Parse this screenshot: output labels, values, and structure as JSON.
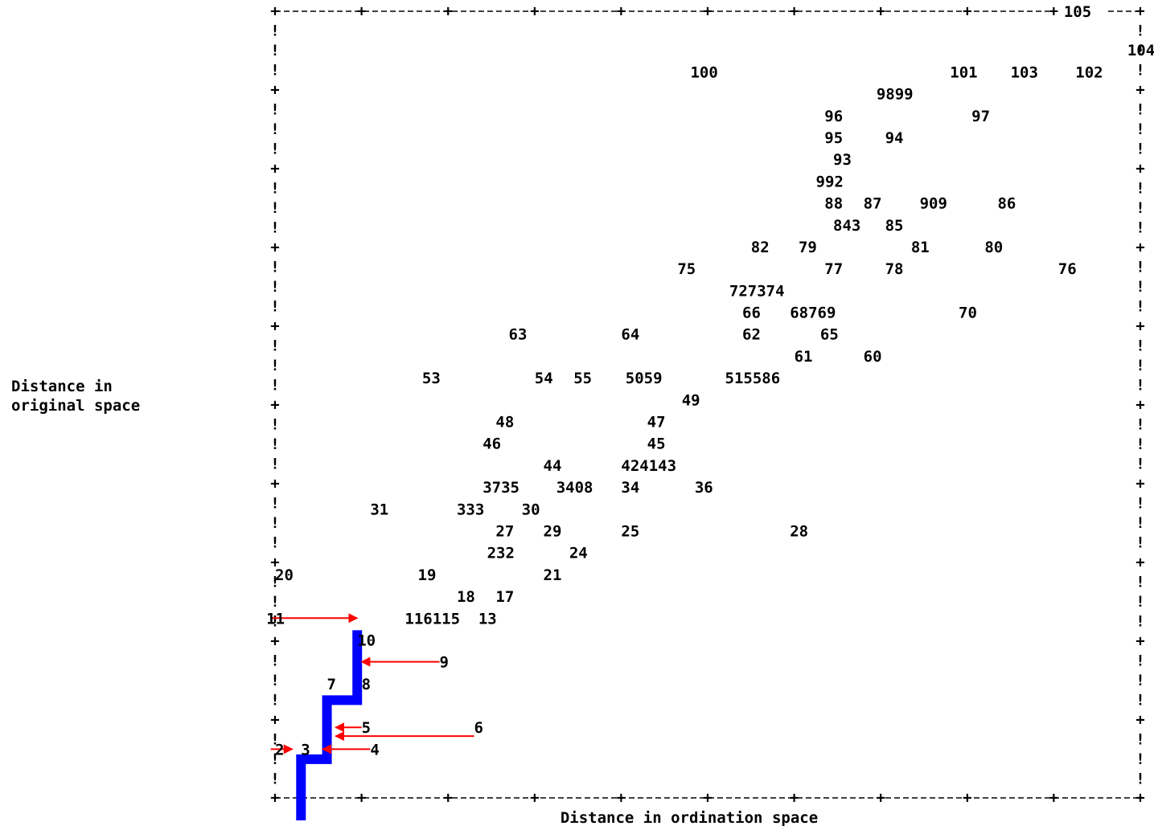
{
  "chart_data": {
    "type": "scatter",
    "title": "",
    "xlabel": "Distance in ordination space",
    "ylabel_lines": [
      "Distance in",
      "original space"
    ],
    "xlim": [
      0,
      10
    ],
    "ylim": [
      0,
      36
    ],
    "grid": false,
    "frame_labels": [
      "105"
    ],
    "points": [
      {
        "label": "104",
        "x": 9.85,
        "y": 35
      },
      {
        "label": "100",
        "x": 4.8,
        "y": 34
      },
      {
        "label": "101",
        "x": 7.8,
        "y": 34
      },
      {
        "label": "103",
        "x": 8.5,
        "y": 34
      },
      {
        "label": "102",
        "x": 9.25,
        "y": 34
      },
      {
        "label": "9899",
        "x": 6.95,
        "y": 33
      },
      {
        "label": "96",
        "x": 6.35,
        "y": 32
      },
      {
        "label": "97",
        "x": 8.05,
        "y": 32
      },
      {
        "label": "95",
        "x": 6.35,
        "y": 31
      },
      {
        "label": "94",
        "x": 7.05,
        "y": 31
      },
      {
        "label": "93",
        "x": 6.45,
        "y": 30
      },
      {
        "label": "992",
        "x": 6.25,
        "y": 29
      },
      {
        "label": "88",
        "x": 6.35,
        "y": 28
      },
      {
        "label": "87",
        "x": 6.8,
        "y": 28
      },
      {
        "label": "909",
        "x": 7.45,
        "y": 28
      },
      {
        "label": "86",
        "x": 8.35,
        "y": 28
      },
      {
        "label": "843",
        "x": 6.45,
        "y": 27
      },
      {
        "label": "85",
        "x": 7.05,
        "y": 27
      },
      {
        "label": "82",
        "x": 5.5,
        "y": 26
      },
      {
        "label": "79",
        "x": 6.05,
        "y": 26
      },
      {
        "label": "81",
        "x": 7.35,
        "y": 26
      },
      {
        "label": "80",
        "x": 8.2,
        "y": 26
      },
      {
        "label": "75",
        "x": 4.65,
        "y": 25
      },
      {
        "label": "77",
        "x": 6.35,
        "y": 25
      },
      {
        "label": "78",
        "x": 7.05,
        "y": 25
      },
      {
        "label": "76",
        "x": 9.05,
        "y": 25
      },
      {
        "label": "727374",
        "x": 5.25,
        "y": 24
      },
      {
        "label": "66",
        "x": 5.4,
        "y": 23
      },
      {
        "label": "68769",
        "x": 5.95,
        "y": 23
      },
      {
        "label": "70",
        "x": 7.9,
        "y": 23
      },
      {
        "label": "63",
        "x": 2.7,
        "y": 22
      },
      {
        "label": "64",
        "x": 4.0,
        "y": 22
      },
      {
        "label": "62",
        "x": 5.4,
        "y": 22
      },
      {
        "label": "65",
        "x": 6.3,
        "y": 22
      },
      {
        "label": "61",
        "x": 6.0,
        "y": 21
      },
      {
        "label": "60",
        "x": 6.8,
        "y": 21
      },
      {
        "label": "53",
        "x": 1.7,
        "y": 20
      },
      {
        "label": "54",
        "x": 3.0,
        "y": 20
      },
      {
        "label": "55",
        "x": 3.45,
        "y": 20
      },
      {
        "label": "5059",
        "x": 4.05,
        "y": 20
      },
      {
        "label": "515586",
        "x": 5.2,
        "y": 20
      },
      {
        "label": "49",
        "x": 4.7,
        "y": 19
      },
      {
        "label": "48",
        "x": 2.55,
        "y": 18
      },
      {
        "label": "47",
        "x": 4.3,
        "y": 18
      },
      {
        "label": "46",
        "x": 2.4,
        "y": 17
      },
      {
        "label": "45",
        "x": 4.3,
        "y": 17
      },
      {
        "label": "44",
        "x": 3.1,
        "y": 16
      },
      {
        "label": "424143",
        "x": 4.0,
        "y": 16
      },
      {
        "label": "3735",
        "x": 2.4,
        "y": 15
      },
      {
        "label": "3408",
        "x": 3.25,
        "y": 15
      },
      {
        "label": "34",
        "x": 4.0,
        "y": 15
      },
      {
        "label": "36",
        "x": 4.85,
        "y": 15
      },
      {
        "label": "31",
        "x": 1.1,
        "y": 14
      },
      {
        "label": "333",
        "x": 2.1,
        "y": 14
      },
      {
        "label": "30",
        "x": 2.85,
        "y": 14
      },
      {
        "label": "27",
        "x": 2.55,
        "y": 13
      },
      {
        "label": "29",
        "x": 3.1,
        "y": 13
      },
      {
        "label": "25",
        "x": 4.0,
        "y": 13
      },
      {
        "label": "28",
        "x": 5.95,
        "y": 13
      },
      {
        "label": "232",
        "x": 2.45,
        "y": 12
      },
      {
        "label": "24",
        "x": 3.4,
        "y": 12
      },
      {
        "label": "20",
        "x": 0.0,
        "y": 11
      },
      {
        "label": "19",
        "x": 1.65,
        "y": 11
      },
      {
        "label": "21",
        "x": 3.1,
        "y": 11
      },
      {
        "label": "18",
        "x": 2.1,
        "y": 10
      },
      {
        "label": "17",
        "x": 2.55,
        "y": 10
      },
      {
        "label": "11",
        "x": -0.1,
        "y": 9
      },
      {
        "label": "116115",
        "x": 1.5,
        "y": 9
      },
      {
        "label": "13",
        "x": 2.35,
        "y": 9
      },
      {
        "label": "10",
        "x": 0.95,
        "y": 8
      },
      {
        "label": "9",
        "x": 1.9,
        "y": 7
      },
      {
        "label": "7",
        "x": 0.6,
        "y": 6
      },
      {
        "label": "8",
        "x": 1.0,
        "y": 6
      },
      {
        "label": "5",
        "x": 1.0,
        "y": 4
      },
      {
        "label": "6",
        "x": 2.3,
        "y": 4
      },
      {
        "label": "2",
        "x": 0.0,
        "y": 3
      },
      {
        "label": "3",
        "x": 0.3,
        "y": 3
      },
      {
        "label": "4",
        "x": 1.1,
        "y": 3
      }
    ],
    "monotone_regression": {
      "color": "#0000ff",
      "steps": [
        [
          0.3,
          0
        ],
        [
          0.3,
          2.8
        ],
        [
          0.6,
          2.8
        ],
        [
          0.6,
          5.5
        ],
        [
          0.95,
          5.5
        ],
        [
          0.95,
          8.7
        ]
      ]
    },
    "arrows": {
      "color": "#ff0000",
      "items": [
        {
          "from": [
            -0.05,
            9
          ],
          "to": [
            0.95,
            9
          ]
        },
        {
          "from": [
            1.9,
            7
          ],
          "to": [
            1.0,
            7
          ]
        },
        {
          "from": [
            1.0,
            4
          ],
          "to": [
            0.7,
            4
          ]
        },
        {
          "from": [
            2.3,
            3.6
          ],
          "to": [
            0.7,
            3.6
          ]
        },
        {
          "from": [
            1.1,
            3
          ],
          "to": [
            0.55,
            3
          ]
        },
        {
          "from": [
            -0.05,
            3
          ],
          "to": [
            0.2,
            3
          ]
        }
      ]
    }
  }
}
